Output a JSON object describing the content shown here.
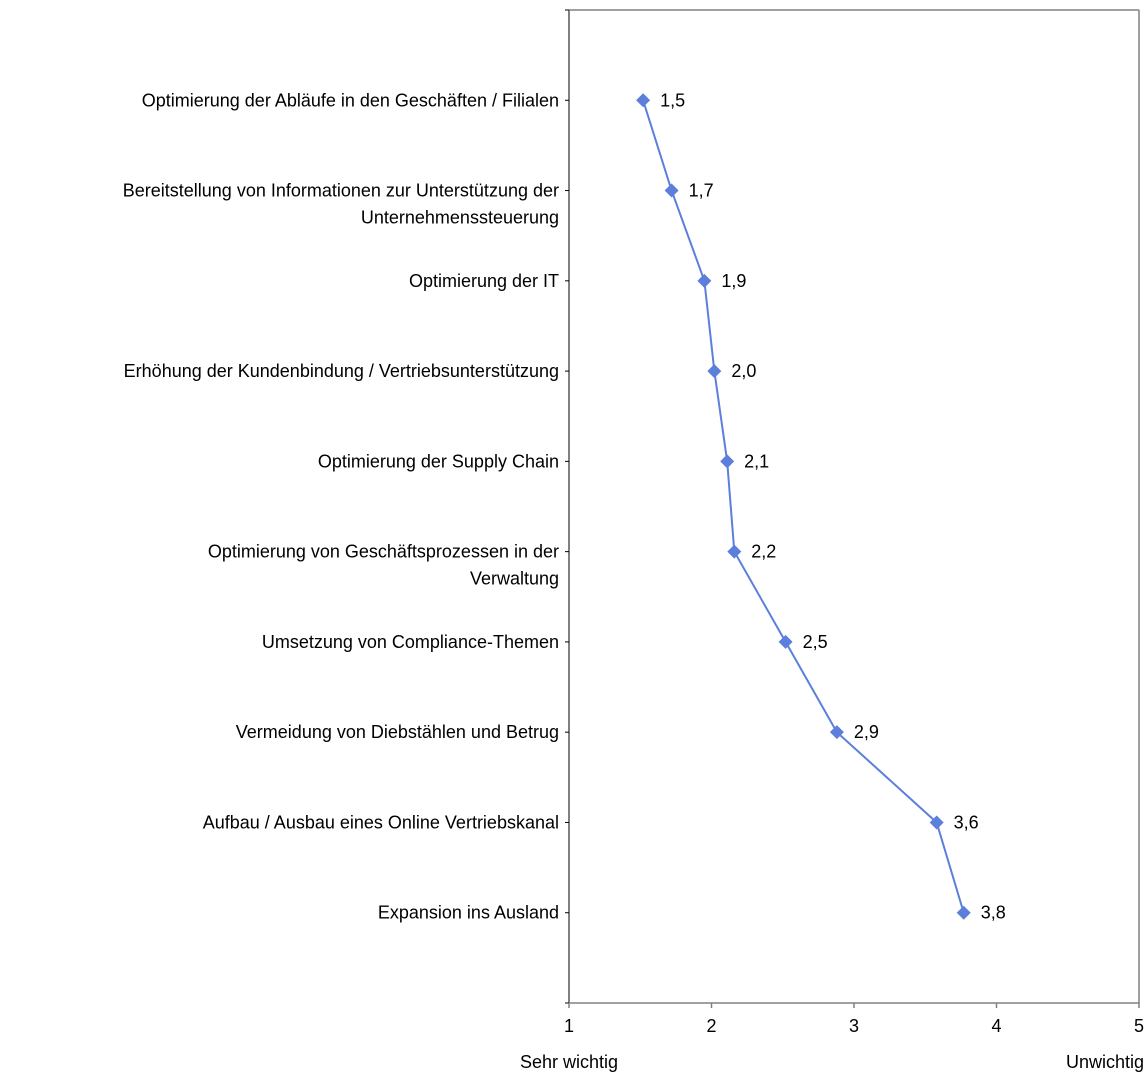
{
  "chart_data": {
    "type": "line",
    "orientation": "horizontal-value-axis",
    "categories": [
      [
        "Optimierung der Abläufe in den Geschäften / Filialen"
      ],
      [
        "Bereitstellung von Informationen zur Unterstützung der",
        "Unternehmenssteuerung"
      ],
      [
        "Optimierung der IT"
      ],
      [
        "Erhöhung der Kundenbindung / Vertriebsunterstützung"
      ],
      [
        "Optimierung der Supply Chain"
      ],
      [
        "Optimierung von Geschäftsprozessen in der",
        "Verwaltung"
      ],
      [
        "Umsetzung von Compliance-Themen"
      ],
      [
        "Vermeidung von Diebstählen und Betrug"
      ],
      [
        "Aufbau / Ausbau eines Online Vertriebskanal"
      ],
      [
        "Expansion ins Ausland"
      ]
    ],
    "values": [
      1.52,
      1.72,
      1.95,
      2.02,
      2.11,
      2.16,
      2.52,
      2.88,
      3.58,
      3.77
    ],
    "value_labels": [
      "1,5",
      "1,7",
      "1,9",
      "2,0",
      "2,1",
      "2,2",
      "2,5",
      "2,9",
      "3,6",
      "3,8"
    ],
    "xlim": [
      1,
      5
    ],
    "xticks": [
      "1",
      "2",
      "3",
      "4",
      "5"
    ],
    "x_end_labels": {
      "left": "Sehr wichtig",
      "right": "Unwichtig"
    },
    "legend": "none",
    "grid": false,
    "colors": {
      "series": "#5B7FDB",
      "axis": "#808080"
    }
  }
}
